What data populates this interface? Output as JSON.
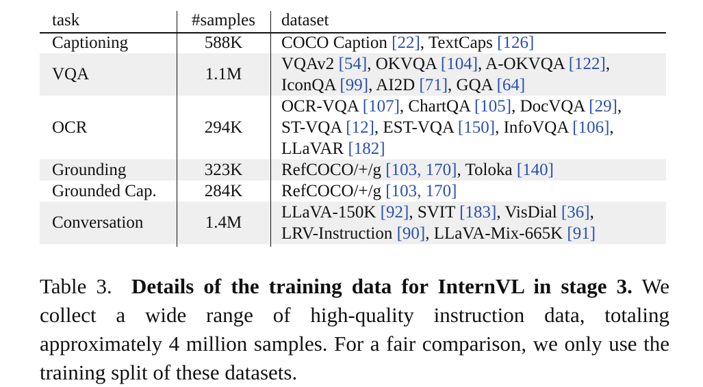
{
  "table": {
    "headers": {
      "task": "task",
      "samples": "#samples",
      "dataset": "dataset"
    },
    "rows": [
      {
        "task": "Captioning",
        "samples": "588K",
        "shaded": false,
        "lines": [
          [
            {
              "t": "COCO Caption "
            },
            {
              "t": "[22]",
              "ref": true
            },
            {
              "t": ", TextCaps "
            },
            {
              "t": "[126]",
              "ref": true
            }
          ]
        ]
      },
      {
        "task": "VQA",
        "samples": "1.1M",
        "shaded": true,
        "lines": [
          [
            {
              "t": "VQAv2 "
            },
            {
              "t": "[54]",
              "ref": true
            },
            {
              "t": ", OKVQA "
            },
            {
              "t": "[104]",
              "ref": true
            },
            {
              "t": ", A-OKVQA "
            },
            {
              "t": "[122]",
              "ref": true
            },
            {
              "t": ","
            }
          ],
          [
            {
              "t": "IconQA "
            },
            {
              "t": "[99]",
              "ref": true
            },
            {
              "t": ", AI2D "
            },
            {
              "t": "[71]",
              "ref": true
            },
            {
              "t": ", GQA "
            },
            {
              "t": "[64]",
              "ref": true
            }
          ]
        ]
      },
      {
        "task": "OCR",
        "samples": "294K",
        "shaded": false,
        "lines": [
          [
            {
              "t": "OCR-VQA "
            },
            {
              "t": "[107]",
              "ref": true
            },
            {
              "t": ", ChartQA "
            },
            {
              "t": "[105]",
              "ref": true
            },
            {
              "t": ", DocVQA "
            },
            {
              "t": "[29]",
              "ref": true
            },
            {
              "t": ","
            }
          ],
          [
            {
              "t": "ST-VQA "
            },
            {
              "t": "[12]",
              "ref": true
            },
            {
              "t": ", EST-VQA "
            },
            {
              "t": "[150]",
              "ref": true
            },
            {
              "t": ", InfoVQA "
            },
            {
              "t": "[106]",
              "ref": true
            },
            {
              "t": ","
            }
          ],
          [
            {
              "t": "LLaVAR "
            },
            {
              "t": "[182]",
              "ref": true
            }
          ]
        ]
      },
      {
        "task": "Grounding",
        "samples": "323K",
        "shaded": true,
        "lines": [
          [
            {
              "t": "RefCOCO/+/g "
            },
            {
              "t": "[103, 170]",
              "ref": true
            },
            {
              "t": ", Toloka "
            },
            {
              "t": "[140]",
              "ref": true
            }
          ]
        ]
      },
      {
        "task": "Grounded Cap.",
        "samples": "284K",
        "shaded": false,
        "lines": [
          [
            {
              "t": "RefCOCO/+/g "
            },
            {
              "t": "[103, 170]",
              "ref": true
            }
          ]
        ]
      },
      {
        "task": "Conversation",
        "samples": "1.4M",
        "shaded": true,
        "lines": [
          [
            {
              "t": "LLaVA-150K "
            },
            {
              "t": "[92]",
              "ref": true
            },
            {
              "t": ", SVIT "
            },
            {
              "t": "[183]",
              "ref": true
            },
            {
              "t": ", VisDial "
            },
            {
              "t": "[36]",
              "ref": true
            },
            {
              "t": ","
            }
          ],
          [
            {
              "t": "LRV-Instruction "
            },
            {
              "t": "[90]",
              "ref": true
            },
            {
              "t": ", LLaVA-Mix-665K "
            },
            {
              "t": "[91]",
              "ref": true
            }
          ]
        ]
      }
    ]
  },
  "caption": {
    "label": "Table 3.",
    "bold": "Details of the training data for InternVL in stage 3.",
    "body": "We collect a wide range of high-quality instruction data, totaling approximately 4 million samples. For a fair comparison, we only use the training split of these datasets."
  },
  "colors": {
    "ref": "#2a4fb0",
    "shade": "#efefef"
  }
}
